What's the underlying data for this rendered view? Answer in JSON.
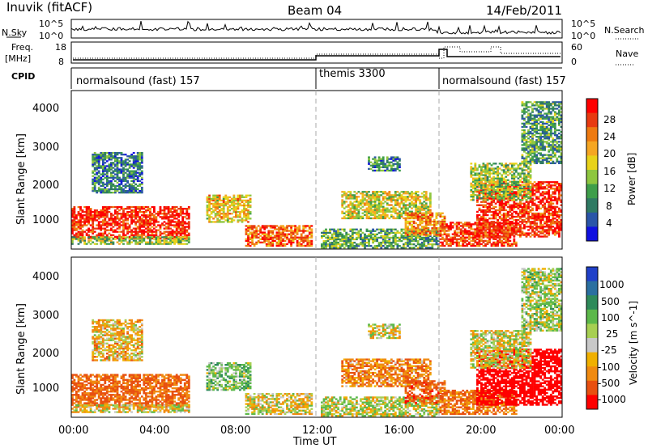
{
  "header": {
    "station": "Inuvik (fitACF)",
    "beam": "Beam 04",
    "date": "14/Feb/2011"
  },
  "noise_panel": {
    "left_label": "N.Sky",
    "right_label": "N.Search",
    "left_ticks": [
      "10^5",
      "10^0"
    ],
    "right_ticks": [
      "10^5",
      "10^0"
    ]
  },
  "freq_panel": {
    "label_line1": "Freq.",
    "label_line2": "[MHz]",
    "right_label": "Nave",
    "left_ticks": [
      "18",
      "8"
    ],
    "right_ticks": [
      "60",
      "0"
    ]
  },
  "cpid_panel": {
    "label": "CPID",
    "segments": [
      {
        "name": "normalsound (fast) 157",
        "start_hour": 0
      },
      {
        "name": "themis 3300",
        "start_hour": 12
      },
      {
        "name": "normalsound (fast) 157",
        "start_hour": 18
      }
    ]
  },
  "time_axis": {
    "label": "Time UT",
    "tick_labels": [
      "00:00",
      "04:00",
      "08:00",
      "12:00",
      "16:00",
      "20:00",
      "00:00"
    ]
  },
  "power_panel": {
    "ylabel": "Slant Range [km]",
    "y_ticks": [
      "4000",
      "3000",
      "2000",
      "1000"
    ],
    "colorbar_label": "Power [dB]",
    "colorbar_ticks": [
      "28",
      "24",
      "20",
      "16",
      "12",
      "8",
      "4"
    ],
    "colors": [
      "#1010e0",
      "#2a55a8",
      "#2f7a63",
      "#3e9e4a",
      "#8ec63f",
      "#e8d21a",
      "#f5a623",
      "#ee7a10",
      "#e83a10",
      "#ff0000"
    ]
  },
  "velocity_panel": {
    "ylabel": "Slant Range [km]",
    "y_ticks": [
      "4000",
      "3000",
      "2000",
      "1000"
    ],
    "colorbar_label": "Velocity [m s^-1]",
    "colorbar_ticks": [
      "1000",
      "500",
      "100",
      "25",
      "-25",
      "-100",
      "-500",
      "-1000"
    ],
    "colors": [
      "#2040c8",
      "#2a6fa0",
      "#2e8a5a",
      "#5cb84a",
      "#a7cf52",
      "#c8c8c8",
      "#f0b000",
      "#f08a10",
      "#e85010",
      "#ff0000"
    ]
  },
  "chart_data": {
    "type": "heatmap",
    "x_range_hours": [
      0,
      24
    ],
    "y_range_km": [
      180,
      4500
    ],
    "regions": [
      {
        "t0": 0.0,
        "t1": 5.7,
        "r0": 450,
        "r1": 1350,
        "power": 27,
        "vel": -300
      },
      {
        "t0": 0.0,
        "t1": 5.7,
        "r0": 300,
        "r1": 500,
        "power": 14,
        "vel": -40
      },
      {
        "t0": 6.6,
        "t1": 8.7,
        "r0": 900,
        "r1": 1650,
        "power": 19,
        "vel": 150
      },
      {
        "t0": 8.5,
        "t1": 11.7,
        "r0": 250,
        "r1": 800,
        "power": 24,
        "vel": -20
      },
      {
        "t0": 13.2,
        "t1": 17.6,
        "r0": 1000,
        "r1": 1750,
        "power": 17,
        "vel": -200
      },
      {
        "t0": 12.2,
        "t1": 18.0,
        "r0": 200,
        "r1": 700,
        "power": 12,
        "vel": 50
      },
      {
        "t0": 16.3,
        "t1": 18.3,
        "r0": 550,
        "r1": 1150,
        "power": 22,
        "vel": -350
      },
      {
        "t0": 18.0,
        "t1": 21.8,
        "r0": 250,
        "r1": 900,
        "power": 26,
        "vel": -250
      },
      {
        "t0": 19.8,
        "t1": 24.0,
        "r0": 500,
        "r1": 2000,
        "power": 27,
        "vel": -700
      },
      {
        "t0": 14.5,
        "t1": 16.0,
        "r0": 2300,
        "r1": 2700,
        "power": 10,
        "vel": 10
      },
      {
        "t0": 19.5,
        "t1": 22.5,
        "r0": 1500,
        "r1": 2500,
        "power": 15,
        "vel": 0
      },
      {
        "t0": 1.0,
        "t1": 3.5,
        "r0": 1700,
        "r1": 2800,
        "power": 9,
        "vel": -80
      },
      {
        "t0": 22.0,
        "t1": 24.0,
        "r0": 2500,
        "r1": 4200,
        "power": 11,
        "vel": 80
      }
    ]
  }
}
